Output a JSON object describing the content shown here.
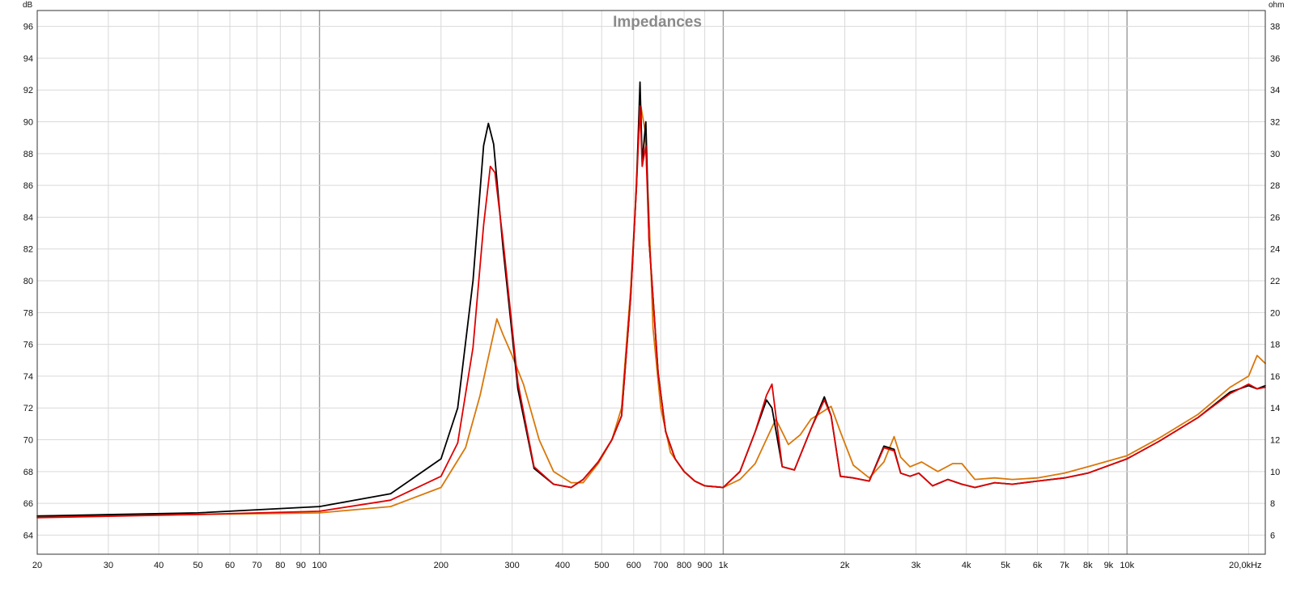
{
  "chart_data": {
    "type": "line",
    "title": "Impedances",
    "y_left_unit": "dB",
    "y_right_unit": "ohm",
    "x_scale": "log",
    "x_range_hz": [
      20,
      22000
    ],
    "y_left_range": [
      62.8,
      97
    ],
    "y_right_range": [
      4.8,
      39
    ],
    "x_tick_labels": [
      {
        "hz": 20,
        "label": "20"
      },
      {
        "hz": 30,
        "label": "30"
      },
      {
        "hz": 40,
        "label": "40"
      },
      {
        "hz": 50,
        "label": "50"
      },
      {
        "hz": 60,
        "label": "60"
      },
      {
        "hz": 70,
        "label": "70"
      },
      {
        "hz": 80,
        "label": "80"
      },
      {
        "hz": 90,
        "label": "90"
      },
      {
        "hz": 100,
        "label": "100"
      },
      {
        "hz": 200,
        "label": "200"
      },
      {
        "hz": 300,
        "label": "300"
      },
      {
        "hz": 400,
        "label": "400"
      },
      {
        "hz": 500,
        "label": "500"
      },
      {
        "hz": 600,
        "label": "600"
      },
      {
        "hz": 700,
        "label": "700"
      },
      {
        "hz": 800,
        "label": "800"
      },
      {
        "hz": 900,
        "label": "900"
      },
      {
        "hz": 1000,
        "label": "1k"
      },
      {
        "hz": 2000,
        "label": "2k"
      },
      {
        "hz": 3000,
        "label": "3k"
      },
      {
        "hz": 4000,
        "label": "4k"
      },
      {
        "hz": 5000,
        "label": "5k"
      },
      {
        "hz": 6000,
        "label": "6k"
      },
      {
        "hz": 7000,
        "label": "7k"
      },
      {
        "hz": 8000,
        "label": "8k"
      },
      {
        "hz": 9000,
        "label": "9k"
      },
      {
        "hz": 10000,
        "label": "10k"
      },
      {
        "hz": 20000,
        "label": "20,0kHz"
      }
    ],
    "y_left_ticks": [
      64,
      66,
      68,
      70,
      72,
      74,
      76,
      78,
      80,
      82,
      84,
      86,
      88,
      90,
      92,
      94,
      96
    ],
    "y_right_ticks": [
      6,
      8,
      10,
      12,
      14,
      16,
      18,
      20,
      22,
      24,
      26,
      28,
      30,
      32,
      34,
      36,
      38
    ],
    "grid": true,
    "legend": "none",
    "series": [
      {
        "color": "#000000",
        "x": [
          20,
          50,
          100,
          150,
          200,
          220,
          240,
          255,
          262,
          270,
          285,
          310,
          340,
          380,
          420,
          450,
          490,
          530,
          560,
          590,
          610,
          622,
          630,
          643,
          655,
          665,
          690,
          720,
          760,
          800,
          850,
          900,
          1000,
          1100,
          1200,
          1280,
          1320,
          1400,
          1500,
          1650,
          1780,
          1850,
          1950,
          2100,
          2300,
          2500,
          2650,
          2750,
          2900,
          3050,
          3300,
          3600,
          3900,
          4200,
          4700,
          5200,
          6000,
          7000,
          8000,
          10000,
          12000,
          15000,
          18000,
          20000,
          21000,
          22000
        ],
        "values": [
          65.2,
          65.4,
          65.8,
          66.6,
          68.8,
          72,
          80,
          88.5,
          89.9,
          88.6,
          82,
          73.2,
          68.2,
          67.2,
          67,
          67.5,
          68.6,
          70,
          71.5,
          79,
          86,
          92.5,
          87.5,
          90,
          82.5,
          80.2,
          74.2,
          70.5,
          68.8,
          68,
          67.4,
          67.1,
          67,
          68,
          70.5,
          72.5,
          72,
          68.3,
          68.1,
          70.7,
          72.7,
          71.5,
          67.7,
          67.6,
          67.4,
          69.6,
          69.4,
          67.9,
          67.7,
          67.9,
          67.1,
          67.5,
          67.2,
          67,
          67.3,
          67.2,
          67.4,
          67.6,
          67.9,
          68.8,
          69.9,
          71.4,
          73,
          73.4,
          73.2,
          73.4
        ]
      },
      {
        "color": "#e00000",
        "x": [
          20,
          50,
          100,
          150,
          200,
          220,
          240,
          255,
          265,
          272,
          285,
          310,
          340,
          380,
          420,
          450,
          490,
          530,
          560,
          590,
          610,
          622,
          630,
          643,
          655,
          665,
          690,
          720,
          760,
          800,
          850,
          900,
          1000,
          1100,
          1200,
          1280,
          1320,
          1400,
          1500,
          1650,
          1780,
          1850,
          1950,
          2100,
          2300,
          2500,
          2650,
          2750,
          2900,
          3050,
          3300,
          3600,
          3900,
          4200,
          4700,
          5200,
          6000,
          7000,
          8000,
          10000,
          12000,
          15000,
          18000,
          20000,
          21000,
          22000
        ],
        "values": [
          65.1,
          65.3,
          65.5,
          66.2,
          67.7,
          69.8,
          75.8,
          83.5,
          87.2,
          86.8,
          82.5,
          73.6,
          68.3,
          67.2,
          67,
          67.5,
          68.6,
          70,
          71.5,
          79,
          86,
          91,
          87.2,
          88.5,
          82.5,
          80.2,
          74.2,
          70.5,
          68.8,
          68,
          67.4,
          67.1,
          67,
          68,
          70.5,
          72.8,
          73.5,
          68.3,
          68.1,
          70.7,
          72.5,
          71.5,
          67.7,
          67.6,
          67.4,
          69.5,
          69.3,
          67.9,
          67.7,
          67.9,
          67.1,
          67.5,
          67.2,
          67,
          67.3,
          67.2,
          67.4,
          67.6,
          67.9,
          68.8,
          69.9,
          71.4,
          72.9,
          73.5,
          73.2,
          73.3
        ]
      },
      {
        "color": "#d9780a",
        "x": [
          20,
          50,
          100,
          150,
          200,
          230,
          250,
          262,
          275,
          285,
          300,
          320,
          350,
          380,
          420,
          450,
          490,
          530,
          560,
          590,
          605,
          615,
          625,
          640,
          655,
          670,
          700,
          740,
          800,
          850,
          900,
          1000,
          1100,
          1200,
          1350,
          1450,
          1550,
          1650,
          1850,
          1950,
          2100,
          2300,
          2500,
          2650,
          2750,
          2900,
          3100,
          3400,
          3700,
          3900,
          4200,
          4700,
          5200,
          6000,
          7000,
          8000,
          10000,
          12000,
          15000,
          18000,
          20000,
          21000,
          22000
        ],
        "values": [
          65.2,
          65.3,
          65.4,
          65.8,
          67,
          69.5,
          72.8,
          75.2,
          77.6,
          76.6,
          75.3,
          73.5,
          70,
          68,
          67.3,
          67.3,
          68.5,
          70,
          72,
          79.5,
          84.5,
          88.5,
          91,
          89.5,
          84,
          77,
          72,
          69.2,
          68,
          67.4,
          67.1,
          67,
          67.5,
          68.5,
          71.3,
          69.7,
          70.3,
          71.3,
          72.1,
          70.5,
          68.4,
          67.6,
          68.6,
          70.2,
          68.9,
          68.3,
          68.6,
          68,
          68.5,
          68.5,
          67.5,
          67.6,
          67.5,
          67.6,
          67.9,
          68.3,
          69,
          70.1,
          71.6,
          73.3,
          74,
          75.3,
          74.8
        ]
      }
    ]
  }
}
